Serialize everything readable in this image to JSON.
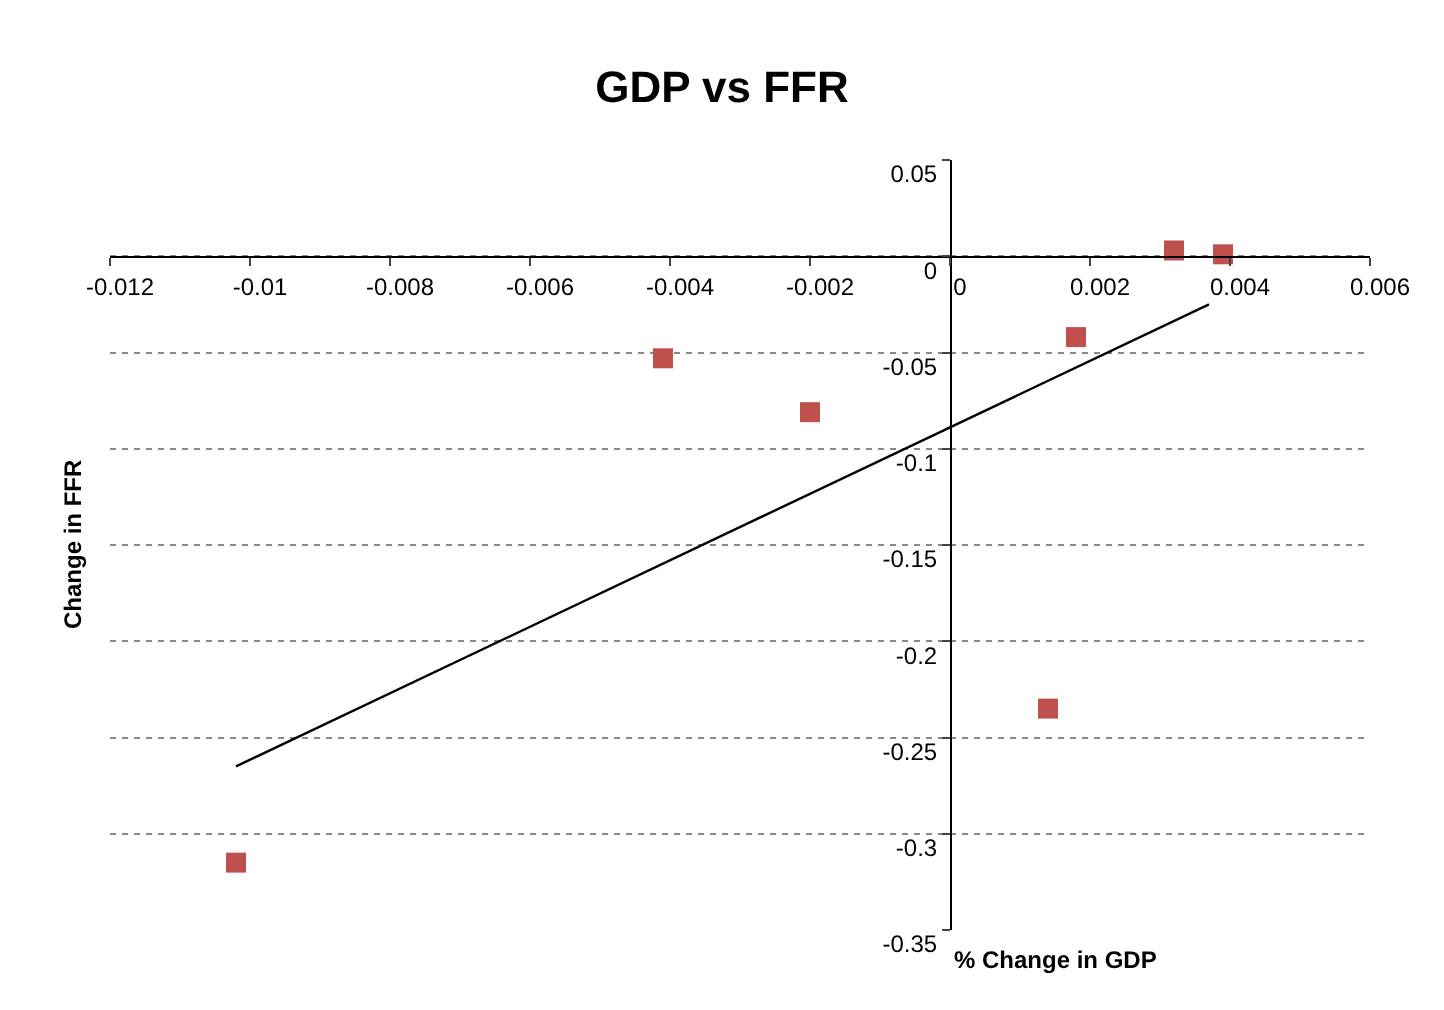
{
  "chart_data": {
    "type": "scatter",
    "title": "GDP vs FFR",
    "xlabel": "% Change in GDP",
    "ylabel": "Change in FFR",
    "xlim": [
      -0.012,
      0.006
    ],
    "xticks": [
      -0.012,
      -0.01,
      -0.008,
      -0.006,
      -0.004,
      -0.002,
      0,
      0.002,
      0.004,
      0.006
    ],
    "ylim": [
      -0.35,
      0.05
    ],
    "yticks": [
      -0.35,
      -0.3,
      -0.25,
      -0.2,
      -0.15,
      -0.1,
      -0.05,
      0,
      0.05
    ],
    "grid": "y",
    "legend": false,
    "marker": "square",
    "series": [
      {
        "color": "#c0504d",
        "x": [
          -0.0102,
          -0.0041,
          -0.002,
          0.0014,
          0.0018,
          0.0032,
          0.0039
        ],
        "values": [
          -0.315,
          -0.053,
          -0.081,
          -0.235,
          -0.042,
          0.003,
          0.001
        ]
      },
      {
        "type": "line",
        "marker": "none",
        "color": "#000000",
        "x": [
          -0.0102,
          0.0037
        ],
        "values": [
          -0.265,
          -0.025
        ]
      }
    ]
  }
}
